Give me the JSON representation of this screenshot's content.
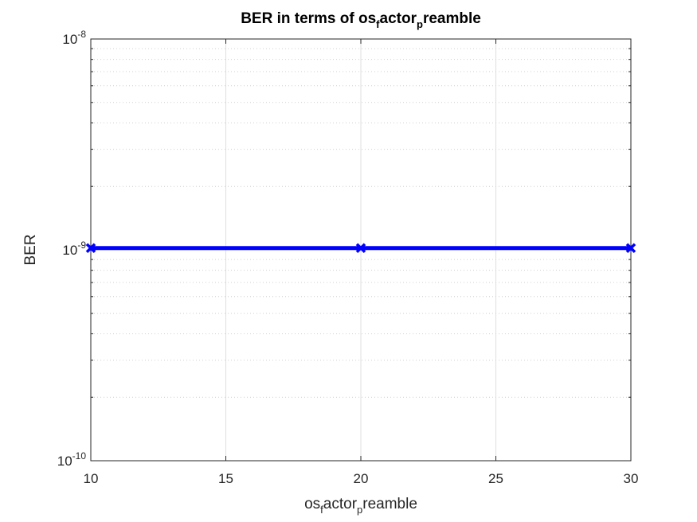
{
  "chart_data": {
    "type": "line",
    "title": {
      "base": "BER in terms of os",
      "sub1": "f",
      "mid": "actor",
      "sub2": "p",
      "end": "reamble"
    },
    "xlabel": {
      "base": "os",
      "sub1": "f",
      "mid": "actor",
      "sub2": "p",
      "end": "reamble"
    },
    "ylabel": "BER",
    "x_ticks": [
      "10",
      "15",
      "20",
      "25",
      "30"
    ],
    "y_ticks": [
      {
        "base": "10",
        "exp": "-10"
      },
      {
        "base": "10",
        "exp": "-9"
      },
      {
        "base": "10",
        "exp": "-8"
      }
    ],
    "xlim": [
      10,
      30
    ],
    "ylim": [
      1e-10,
      1e-08
    ],
    "yscale": "log",
    "grid": true,
    "series": [
      {
        "color": "#0000ff",
        "marker": "x",
        "x": [
          10,
          20,
          30
        ],
        "y": [
          1.02e-09,
          1.02e-09,
          1.02e-09
        ]
      }
    ]
  }
}
